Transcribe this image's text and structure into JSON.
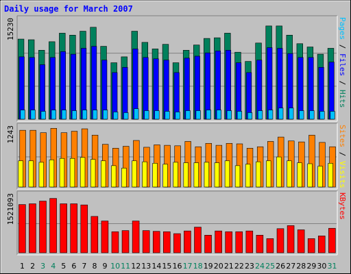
{
  "chart_data": {
    "type": "bar",
    "title": "Daily usage for March 2007",
    "categories": [
      "1",
      "2",
      "3",
      "4",
      "5",
      "6",
      "7",
      "8",
      "9",
      "10",
      "11",
      "12",
      "13",
      "14",
      "15",
      "16",
      "17",
      "18",
      "19",
      "20",
      "21",
      "22",
      "23",
      "24",
      "25",
      "26",
      "27",
      "28",
      "29",
      "30",
      "31"
    ],
    "weekend_days": [
      "3",
      "4",
      "10",
      "11",
      "17",
      "18",
      "24",
      "25",
      "31"
    ],
    "colors": {
      "title": "#0000ff",
      "background": "#c0c0c0",
      "hits": "#00805c",
      "files": "#0000ff",
      "pages": "#00c0ff",
      "visits": "#ffff00",
      "sites": "#ff8000",
      "kbytes": "#ff0000",
      "weekday_label": "#000000",
      "weekend_label": "#00805c"
    },
    "panels": [
      {
        "name": "requests",
        "scale_label": "15230",
        "ylim": [
          0,
          15230
        ],
        "side_labels": [
          {
            "text": "Pages",
            "color": "#00c0ff"
          },
          {
            "text": " / ",
            "color": "#000000"
          },
          {
            "text": "Files",
            "color": "#0000ff"
          },
          {
            "text": " / ",
            "color": "#000000"
          },
          {
            "text": "Hits",
            "color": "#00805c"
          }
        ],
        "series": [
          {
            "name": "Hits",
            "color": "#00805c",
            "values": [
              12200,
              12100,
              10500,
              11800,
              13100,
              12800,
              13400,
              14000,
              11100,
              8600,
              9500,
              13400,
              11700,
              10700,
              11400,
              8600,
              10500,
              11300,
              12300,
              12400,
              13100,
              10200,
              8800,
              11600,
              14200,
              14200,
              12800,
              11500,
              11000,
              9900,
              10800
            ]
          },
          {
            "name": "Files",
            "color": "#0000ff",
            "values": [
              9500,
              9400,
              8300,
              9400,
              10300,
              9900,
              10800,
              11100,
              9000,
              7100,
              7900,
              10700,
              9400,
              9200,
              9000,
              7100,
              9300,
              9600,
              10100,
              10400,
              10500,
              8600,
              7100,
              9000,
              10900,
              10800,
              10000,
              9400,
              9400,
              7900,
              8700
            ]
          },
          {
            "name": "Pages",
            "color": "#00c0ff",
            "values": [
              1400,
              1400,
              1200,
              1400,
              1400,
              1300,
              1400,
              1400,
              1400,
              1100,
              1000,
              1600,
              1300,
              1300,
              1200,
              1100,
              1300,
              1300,
              1400,
              1400,
              1300,
              1200,
              1000,
              1300,
              1400,
              1700,
              1700,
              1300,
              1300,
              1200,
              1200
            ]
          }
        ]
      },
      {
        "name": "visits",
        "scale_label": "1243",
        "ylim": [
          0,
          1243
        ],
        "side_labels": [
          {
            "text": "Sites",
            "color": "#ff8000"
          },
          {
            "text": " / ",
            "color": "#000000"
          },
          {
            "text": "Visits",
            "color": "#ffff00"
          }
        ],
        "series": [
          {
            "name": "Visits",
            "color": "#ffff00",
            "values": [
              540,
              540,
              510,
              560,
              590,
              590,
              610,
              570,
              540,
              440,
              390,
              540,
              520,
              490,
              470,
              510,
              500,
              500,
              510,
              500,
              540,
              440,
              470,
              520,
              540,
              620,
              540,
              500,
              480,
              430,
              490
            ]
          },
          {
            "name": "Sites",
            "color": "#ff8000",
            "values": [
              1170,
              1170,
              1120,
              1210,
              1120,
              1150,
              1200,
              1070,
              880,
              800,
              840,
              960,
              820,
              870,
              860,
              850,
              940,
              830,
              900,
              860,
              900,
              890,
              800,
              830,
              940,
              1030,
              950,
              930,
              1070,
              920,
              830
            ]
          }
        ]
      },
      {
        "name": "kbytes",
        "scale_label": "1521093",
        "ylim": [
          0,
          1521093
        ],
        "side_labels": [
          {
            "text": "KBytes",
            "color": "#ff0000"
          }
        ],
        "series": [
          {
            "name": "KBytes",
            "color": "#ff0000",
            "values": [
              1260000,
              1280000,
              1350000,
              1420000,
              1280000,
              1280000,
              1250000,
              950000,
              830000,
              550000,
              580000,
              830000,
              580000,
              560000,
              550000,
              500000,
              570000,
              670000,
              460000,
              570000,
              550000,
              550000,
              570000,
              460000,
              370000,
              630000,
              710000,
              600000,
              370000,
              440000,
              640000
            ]
          }
        ]
      }
    ]
  }
}
